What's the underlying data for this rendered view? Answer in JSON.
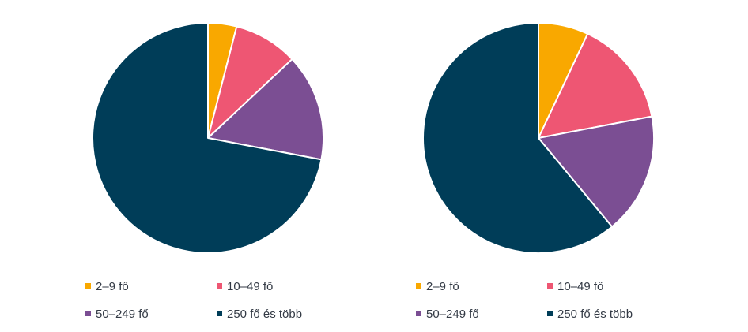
{
  "colors": {
    "2-9": "#F9A800",
    "10-49": "#EE5673",
    "50-249": "#7B4E93",
    "250+": "#003D58"
  },
  "chart_data": [
    {
      "type": "pie",
      "categories": [
        "2–9 fő",
        "10–49 fő",
        "50–249 fő",
        "250 fő és több"
      ],
      "values": [
        4,
        9,
        15,
        72
      ],
      "unit": "%",
      "legend": [
        "2–9 fő",
        "10–49 fő",
        "50–249 fő",
        "250 fő és több"
      ],
      "legend_position": "bottom"
    },
    {
      "type": "pie",
      "categories": [
        "2–9 fő",
        "10–49 fő",
        "50–249 fő",
        "250 fő és több"
      ],
      "values": [
        7,
        15,
        17,
        61
      ],
      "unit": "%",
      "legend": [
        "2–9 fő",
        "10–49 fő",
        "50–249 fő",
        "250 fő és több"
      ],
      "legend_position": "bottom"
    }
  ]
}
